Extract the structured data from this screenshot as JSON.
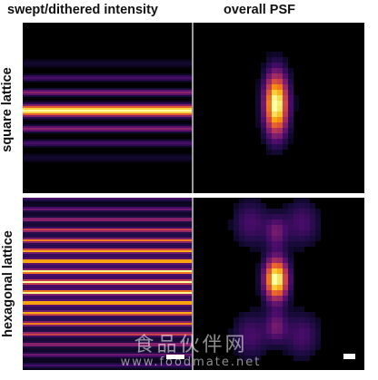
{
  "figure": {
    "column_titles": [
      "swept/dithered intensity",
      "overall PSF"
    ],
    "row_labels": [
      "square lattice",
      "hexagonal lattice"
    ],
    "colormap": [
      "#000004",
      "#1b0c41",
      "#4a0c6b",
      "#781c6d",
      "#a52c60",
      "#cf4446",
      "#ed6925",
      "#fb9b06",
      "#f7d13d",
      "#fcffa4"
    ],
    "panels": [
      {
        "row": "square lattice",
        "column": "swept/dithered intensity"
      },
      {
        "row": "square lattice",
        "column": "overall PSF"
      },
      {
        "row": "hexagonal lattice",
        "column": "swept/dithered intensity"
      },
      {
        "row": "hexagonal lattice",
        "column": "overall PSF"
      }
    ]
  },
  "watermark": {
    "chinese": "食品伙伴网",
    "url": "www.foodmate.net"
  }
}
